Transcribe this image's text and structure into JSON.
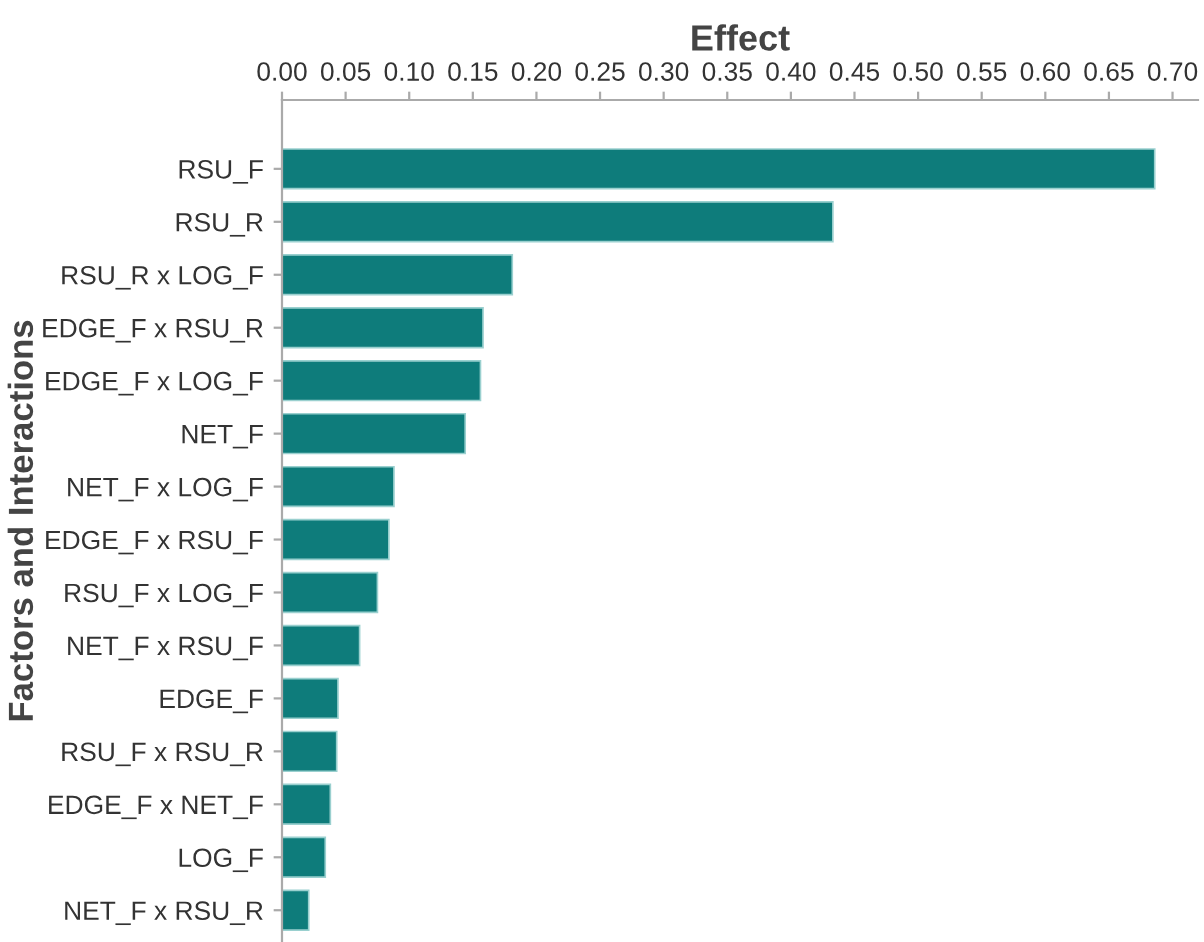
{
  "chart_data": {
    "type": "bar",
    "orientation": "horizontal",
    "xlabel": "Effect",
    "ylabel": "Factors and Interactions",
    "categories": [
      "RSU_F",
      "RSU_R",
      "RSU_R x LOG_F",
      "EDGE_F x RSU_R",
      "EDGE_F x LOG_F",
      "NET_F",
      "NET_F x LOG_F",
      "EDGE_F x RSU_F",
      "RSU_F x LOG_F",
      "NET_F x RSU_F",
      "EDGE_F",
      "RSU_F x RSU_R",
      "EDGE_F x NET_F",
      "LOG_F",
      "NET_F x RSU_R"
    ],
    "values": [
      0.686,
      0.433,
      0.181,
      0.158,
      0.156,
      0.144,
      0.088,
      0.084,
      0.075,
      0.061,
      0.044,
      0.043,
      0.038,
      0.034,
      0.021
    ],
    "color": "#0e7c7b",
    "xlim": [
      0,
      0.72
    ],
    "xticks": [
      {
        "value": 0,
        "label": "0.00"
      },
      0.05,
      {
        "value": 0.1,
        "label": "0.10"
      },
      0.15,
      {
        "value": 0.2,
        "label": "0.20"
      },
      0.25,
      {
        "value": 0.3,
        "label": "0.30"
      },
      0.35,
      {
        "value": 0.4,
        "label": "0.40"
      },
      0.45,
      {
        "value": 0.5,
        "label": "0.50"
      },
      0.55,
      {
        "value": 0.6,
        "label": "0.60"
      },
      0.65,
      {
        "value": 0.7,
        "label": "0.70"
      }
    ],
    "grid": false
  }
}
